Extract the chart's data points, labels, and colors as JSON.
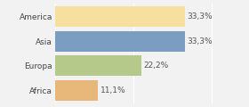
{
  "categories": [
    "America",
    "Asia",
    "Europa",
    "Africa"
  ],
  "values": [
    33.3,
    33.3,
    22.2,
    11.1
  ],
  "labels": [
    "33,3%",
    "33,3%",
    "22,2%",
    "11,1%"
  ],
  "bar_colors": [
    "#f7dfa0",
    "#7b9dc2",
    "#b5c98a",
    "#e8b87a"
  ],
  "background_color": "#f2f2f2",
  "xlim": [
    0,
    42
  ],
  "bar_height": 0.82,
  "label_fontsize": 6.5,
  "category_fontsize": 6.5
}
